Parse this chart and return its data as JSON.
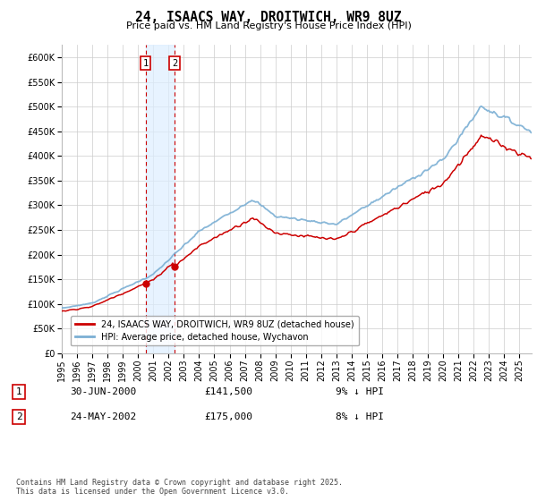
{
  "title": "24, ISAACS WAY, DROITWICH, WR9 8UZ",
  "subtitle": "Price paid vs. HM Land Registry's House Price Index (HPI)",
  "legend_line1": "24, ISAACS WAY, DROITWICH, WR9 8UZ (detached house)",
  "legend_line2": "HPI: Average price, detached house, Wychavon",
  "footnote": "Contains HM Land Registry data © Crown copyright and database right 2025.\nThis data is licensed under the Open Government Licence v3.0.",
  "purchase1_date": "30-JUN-2000",
  "purchase1_price": 141500,
  "purchase1_note": "9% ↓ HPI",
  "purchase2_date": "24-MAY-2002",
  "purchase2_price": 175000,
  "purchase2_note": "8% ↓ HPI",
  "purchase1_x": 2000.5,
  "purchase2_x": 2002.4,
  "hpi_color": "#7bafd4",
  "price_color": "#cc0000",
  "vline_shade_color": "#ddeeff",
  "background_color": "#ffffff",
  "grid_color": "#cccccc",
  "ylim": [
    0,
    625000
  ],
  "yticks": [
    0,
    50000,
    100000,
    150000,
    200000,
    250000,
    300000,
    350000,
    400000,
    450000,
    500000,
    550000,
    600000
  ],
  "xlim_left": 1995,
  "xlim_right": 2025.8
}
